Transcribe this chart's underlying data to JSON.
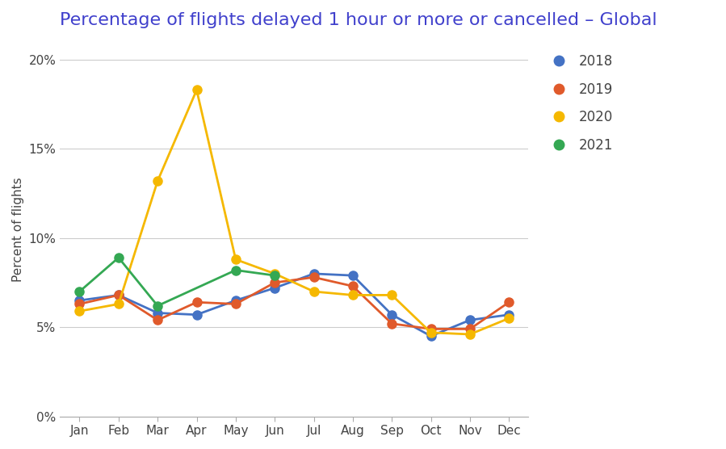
{
  "title": "Percentage of flights delayed 1 hour or more or cancelled – Global",
  "ylabel": "Percent of flights",
  "months": [
    "Jan",
    "Feb",
    "Mar",
    "Apr",
    "May",
    "Jun",
    "Jul",
    "Aug",
    "Sep",
    "Oct",
    "Nov",
    "Dec"
  ],
  "series": {
    "2018": [
      0.065,
      0.068,
      0.058,
      0.057,
      0.065,
      0.072,
      0.08,
      0.079,
      0.057,
      0.045,
      0.054,
      0.057
    ],
    "2019": [
      0.063,
      0.068,
      0.054,
      0.064,
      0.063,
      0.075,
      0.078,
      0.073,
      0.052,
      0.049,
      0.049,
      0.064
    ],
    "2020": [
      0.059,
      0.063,
      0.132,
      0.183,
      0.088,
      0.08,
      0.07,
      0.068,
      0.068,
      0.047,
      0.046,
      0.055
    ],
    "2021": [
      0.07,
      0.089,
      0.062,
      null,
      0.082,
      0.079,
      null,
      null,
      null,
      null,
      null,
      null
    ]
  },
  "colors": {
    "2018": "#4472C4",
    "2019": "#E05A2B",
    "2020": "#F5B800",
    "2021": "#34A853"
  },
  "ylim": [
    0,
    0.21
  ],
  "yticks": [
    0.0,
    0.05,
    0.1,
    0.15,
    0.2
  ],
  "ytick_labels": [
    "0%",
    "5%",
    "10%",
    "15%",
    "20%"
  ],
  "title_color": "#4040CC",
  "title_fontsize": 16,
  "legend_fontsize": 12,
  "marker_size": 8,
  "line_width": 2,
  "background_color": "#ffffff",
  "grid_color": "#cccccc"
}
